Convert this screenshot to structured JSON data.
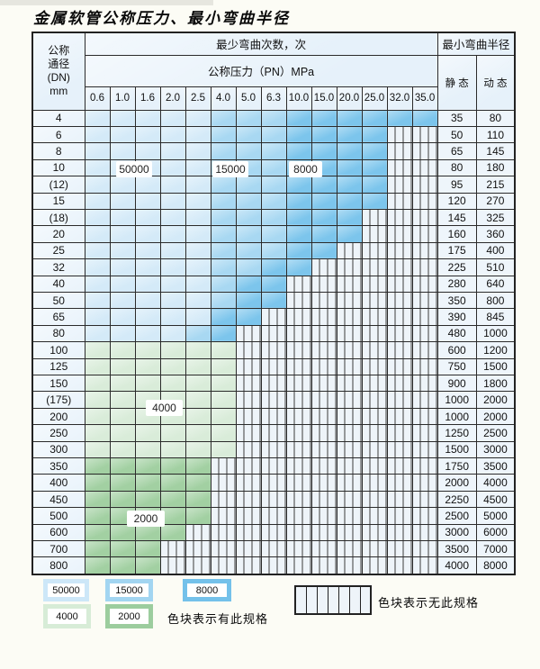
{
  "title": "金属软管公称压力、最小弯曲半径",
  "table": {
    "dn_header_lines": [
      "公称",
      "通径",
      "(DN)",
      "mm"
    ],
    "bend_count_header": "最少弯曲次数，次",
    "pressure_header": "公称压力（PN）MPa",
    "radius_header": "最小弯曲半径",
    "static_label": "静 态",
    "dynamic_label": "动 态",
    "pressures": [
      "0.6",
      "1.0",
      "1.6",
      "2.0",
      "2.5",
      "4.0",
      "5.0",
      "6.3",
      "10.0",
      "15.0",
      "20.0",
      "25.0",
      "32.0",
      "35.0"
    ],
    "rows": [
      {
        "dn": "4",
        "colored_columns": 14,
        "shade": "blue",
        "static": "35",
        "dynamic": "80"
      },
      {
        "dn": "6",
        "colored_columns": 12,
        "shade": "blue",
        "static": "50",
        "dynamic": "110"
      },
      {
        "dn": "8",
        "colored_columns": 12,
        "shade": "blue",
        "static": "65",
        "dynamic": "145"
      },
      {
        "dn": "10",
        "colored_columns": 12,
        "shade": "blue",
        "static": "80",
        "dynamic": "180"
      },
      {
        "dn": "(12)",
        "colored_columns": 12,
        "shade": "blue",
        "static": "95",
        "dynamic": "215"
      },
      {
        "dn": "15",
        "colored_columns": 12,
        "shade": "blue",
        "static": "120",
        "dynamic": "270"
      },
      {
        "dn": "(18)",
        "colored_columns": 11,
        "shade": "blue",
        "static": "145",
        "dynamic": "325"
      },
      {
        "dn": "20",
        "colored_columns": 11,
        "shade": "blue",
        "static": "160",
        "dynamic": "360"
      },
      {
        "dn": "25",
        "colored_columns": 10,
        "shade": "blue",
        "static": "175",
        "dynamic": "400"
      },
      {
        "dn": "32",
        "colored_columns": 9,
        "shade": "blue",
        "static": "225",
        "dynamic": "510"
      },
      {
        "dn": "40",
        "colored_columns": 8,
        "shade": "blue",
        "static": "280",
        "dynamic": "640"
      },
      {
        "dn": "50",
        "colored_columns": 8,
        "shade": "blue",
        "static": "350",
        "dynamic": "800"
      },
      {
        "dn": "65",
        "colored_columns": 7,
        "shade": "blue",
        "static": "390",
        "dynamic": "845"
      },
      {
        "dn": "80",
        "colored_columns": 6,
        "shade": "blue",
        "static": "480",
        "dynamic": "1000"
      },
      {
        "dn": "100",
        "colored_columns": 6,
        "shade": "green-4000",
        "static": "600",
        "dynamic": "1200"
      },
      {
        "dn": "125",
        "colored_columns": 6,
        "shade": "green-4000",
        "static": "750",
        "dynamic": "1500"
      },
      {
        "dn": "150",
        "colored_columns": 6,
        "shade": "green-4000",
        "static": "900",
        "dynamic": "1800"
      },
      {
        "dn": "(175)",
        "colored_columns": 6,
        "shade": "green-4000",
        "static": "1000",
        "dynamic": "2000"
      },
      {
        "dn": "200",
        "colored_columns": 6,
        "shade": "green-4000",
        "static": "1000",
        "dynamic": "2000"
      },
      {
        "dn": "250",
        "colored_columns": 6,
        "shade": "green-4000",
        "static": "1250",
        "dynamic": "2500"
      },
      {
        "dn": "300",
        "colored_columns": 6,
        "shade": "green-4000",
        "static": "1500",
        "dynamic": "3000"
      },
      {
        "dn": "350",
        "colored_columns": 5,
        "shade": "green-2000",
        "static": "1750",
        "dynamic": "3500"
      },
      {
        "dn": "400",
        "colored_columns": 5,
        "shade": "green-2000",
        "static": "2000",
        "dynamic": "4000"
      },
      {
        "dn": "450",
        "colored_columns": 5,
        "shade": "green-2000",
        "static": "2250",
        "dynamic": "4500"
      },
      {
        "dn": "500",
        "colored_columns": 5,
        "shade": "green-2000",
        "static": "2500",
        "dynamic": "5000"
      },
      {
        "dn": "600",
        "colored_columns": 4,
        "shade": "green-2000",
        "static": "3000",
        "dynamic": "6000"
      },
      {
        "dn": "700",
        "colored_columns": 3,
        "shade": "green-2000",
        "static": "3500",
        "dynamic": "7000"
      },
      {
        "dn": "800",
        "colored_columns": 3,
        "shade": "green-2000",
        "static": "4000",
        "dynamic": "8000"
      }
    ]
  },
  "overlays": [
    {
      "label": "50000"
    },
    {
      "label": "15000"
    },
    {
      "label": "8000"
    },
    {
      "label": "4000"
    },
    {
      "label": "2000"
    }
  ],
  "legend": {
    "swatches": [
      {
        "label": "50000",
        "color": "#cde7f8"
      },
      {
        "label": "15000",
        "color": "#a2d5f1"
      },
      {
        "label": "8000",
        "color": "#74c1ea"
      },
      {
        "label": "4000",
        "color": "#d7ecd7"
      },
      {
        "label": "2000",
        "color": "#9ccd9e"
      }
    ],
    "has_spec_note": "色块表示有此规格",
    "no_spec_note": "色块表示无此规格"
  },
  "colors": {
    "bend_50000": "#d4eaf8",
    "bend_15000": "#a8d8f2",
    "bend_8000": "#7cc5ec",
    "bend_4000": "#d9ecd9",
    "bend_2000": "#a2d0a2"
  }
}
